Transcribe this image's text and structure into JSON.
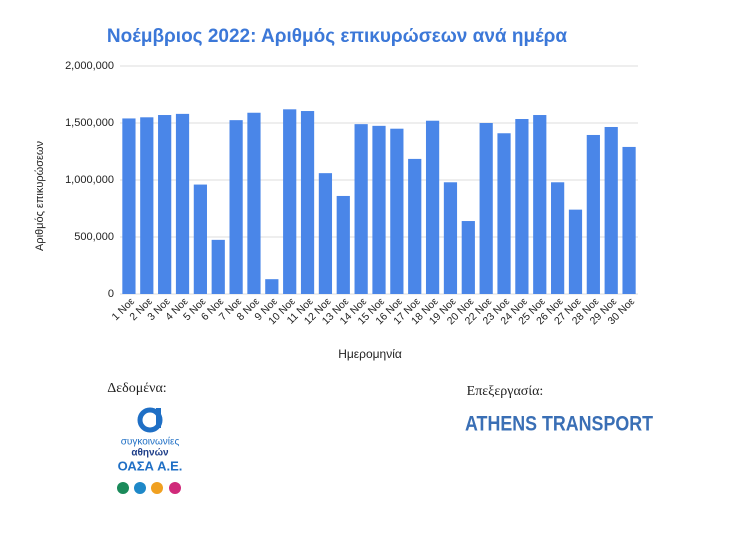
{
  "chart_data": {
    "type": "bar",
    "title": "Νοέμβριος 2022: Αριθμός επικυρώσεων ανά ημέρα",
    "y_label": "Αριθμός επικυρώσεων",
    "x_label": "Ημερομηνία",
    "categories": [
      "1 Νοε",
      "2 Νοε",
      "3 Νοε",
      "4 Νοε",
      "5 Νοε",
      "6 Νοε",
      "7 Νοε",
      "8 Νοε",
      "9 Νοε",
      "10 Νοε",
      "11 Νοε",
      "12 Νοε",
      "13 Νοε",
      "14 Νοε",
      "15 Νοε",
      "16 Νοε",
      "17 Νοε",
      "18 Νοε",
      "19 Νοε",
      "20 Νοε",
      "22 Νοε",
      "23 Νοε",
      "24 Νοε",
      "25 Νοε",
      "26 Νοε",
      "27 Νοε",
      "28 Νοε",
      "29 Νοε",
      "30 Νοε"
    ],
    "values": [
      1540000,
      1550000,
      1570000,
      1580000,
      960000,
      475000,
      1525000,
      1590000,
      130000,
      1620000,
      1605000,
      1060000,
      860000,
      1490000,
      1475000,
      1450000,
      1185000,
      1520000,
      980000,
      640000,
      1500000,
      1410000,
      1535000,
      1570000,
      980000,
      740000,
      1395000,
      1465000,
      1290000
    ],
    "color": "#4a86e8",
    "ylim": [
      0,
      2000000
    ],
    "yticks": [
      0,
      {
        "value": 500000,
        "label": "500,000"
      },
      {
        "value": 1000000,
        "label": "1,000,000"
      },
      {
        "value": 1500000,
        "label": "1,500,000"
      },
      {
        "value": 2000000,
        "label": "2,000,000"
      }
    ],
    "grid": true
  },
  "footer": {
    "data_label": "Δεδομένα:",
    "logo_line1": "συγκοινωνίες",
    "logo_line2": "αθηνών",
    "logo_line3": "ΟΑΣΑ Α.Ε.",
    "credit_label": "Επεξεργασία:",
    "credit_brand": "ATHENS TRANSPORT"
  }
}
